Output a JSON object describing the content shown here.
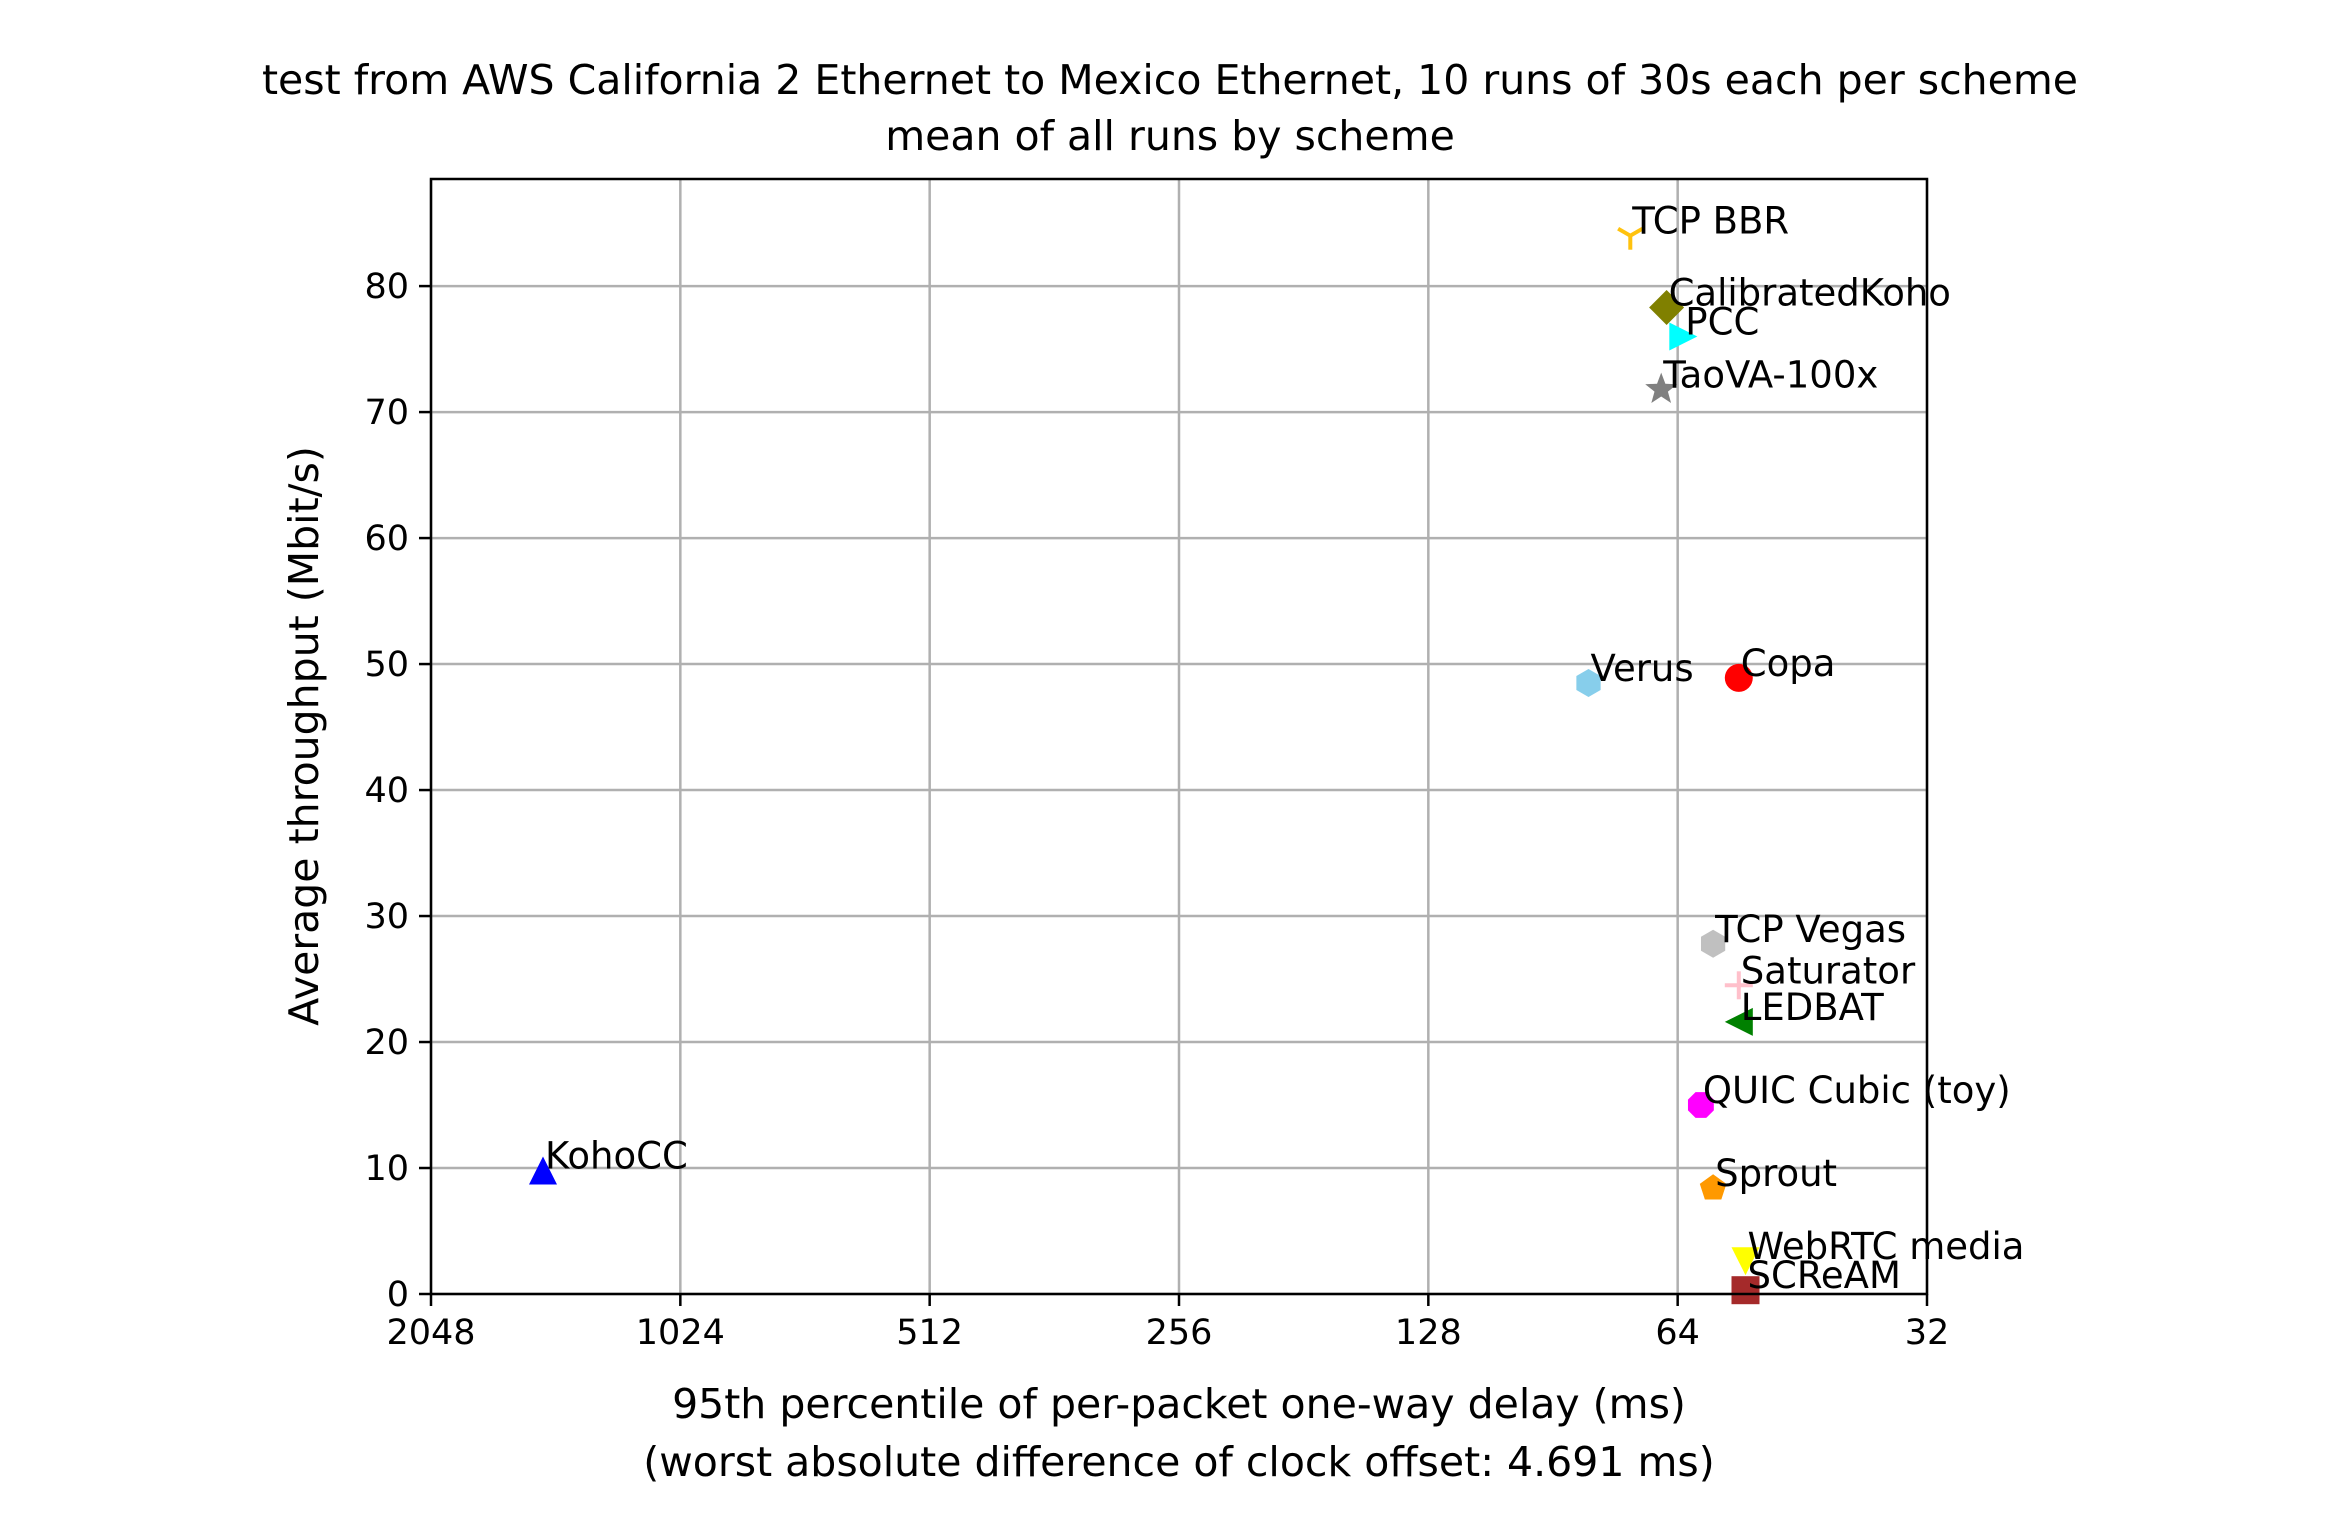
{
  "chart_data": {
    "type": "scatter",
    "title": "test from AWS California 2 Ethernet to Mexico Ethernet, 10 runs of 30s each per scheme",
    "subtitle": "mean of all runs by scheme",
    "xlabel": "95th percentile of per-packet one-way delay (ms)",
    "xlabel2": "(worst absolute difference of clock offset: 4.691 ms)",
    "ylabel": "Average throughput (Mbit/s)",
    "x_scale": "log2",
    "x_inverted": true,
    "xlim": [
      2048,
      32
    ],
    "ylim": [
      0,
      88.5
    ],
    "x_ticks": [
      2048,
      1024,
      512,
      256,
      128,
      64,
      32
    ],
    "x_tick_labels": [
      "2048",
      "1024",
      "512",
      "256",
      "128",
      "64",
      "32"
    ],
    "y_ticks": [
      0,
      10,
      20,
      30,
      40,
      50,
      60,
      70,
      80
    ],
    "y_tick_labels": [
      "0",
      "10",
      "20",
      "30",
      "40",
      "50",
      "60",
      "70",
      "80"
    ],
    "grid": true,
    "legend": "none",
    "points": [
      {
        "name": "TCP BBR",
        "x": 73,
        "y": 84.0,
        "marker": "tri_down",
        "color": "#ffc20e"
      },
      {
        "name": "CalibratedKoho",
        "x": 66,
        "y": 78.3,
        "marker": "diamond",
        "color": "#808000"
      },
      {
        "name": "PCC",
        "x": 63,
        "y": 76.0,
        "marker": "triangle_right",
        "color": "#00ffff"
      },
      {
        "name": "TaoVA-100x",
        "x": 67,
        "y": 71.8,
        "marker": "star",
        "color": "#808080"
      },
      {
        "name": "Verus",
        "x": 82,
        "y": 48.5,
        "marker": "hexagon",
        "color": "#87ceeb"
      },
      {
        "name": "Copa",
        "x": 54,
        "y": 48.9,
        "marker": "circle",
        "color": "#ff0000"
      },
      {
        "name": "TCP Vegas",
        "x": 58,
        "y": 27.8,
        "marker": "hexagon",
        "color": "#c0c0c0"
      },
      {
        "name": "Saturator",
        "x": 54,
        "y": 24.5,
        "marker": "plus",
        "color": "#ffc0cb"
      },
      {
        "name": "LEDBAT",
        "x": 54,
        "y": 21.6,
        "marker": "triangle_left",
        "color": "#008000"
      },
      {
        "name": "QUIC Cubic (toy)",
        "x": 60,
        "y": 15.0,
        "marker": "octagon",
        "color": "#ff00ff"
      },
      {
        "name": "KohoCC",
        "x": 1500,
        "y": 9.8,
        "marker": "triangle_up",
        "color": "#0000ff"
      },
      {
        "name": "Sprout",
        "x": 58,
        "y": 8.4,
        "marker": "pentagon",
        "color": "#ff9900"
      },
      {
        "name": "WebRTC media",
        "x": 53,
        "y": 2.6,
        "marker": "triangle_down",
        "color": "#ffff00"
      },
      {
        "name": "SCReAM",
        "x": 53,
        "y": 0.3,
        "marker": "square",
        "color": "#a52a2a"
      }
    ]
  }
}
